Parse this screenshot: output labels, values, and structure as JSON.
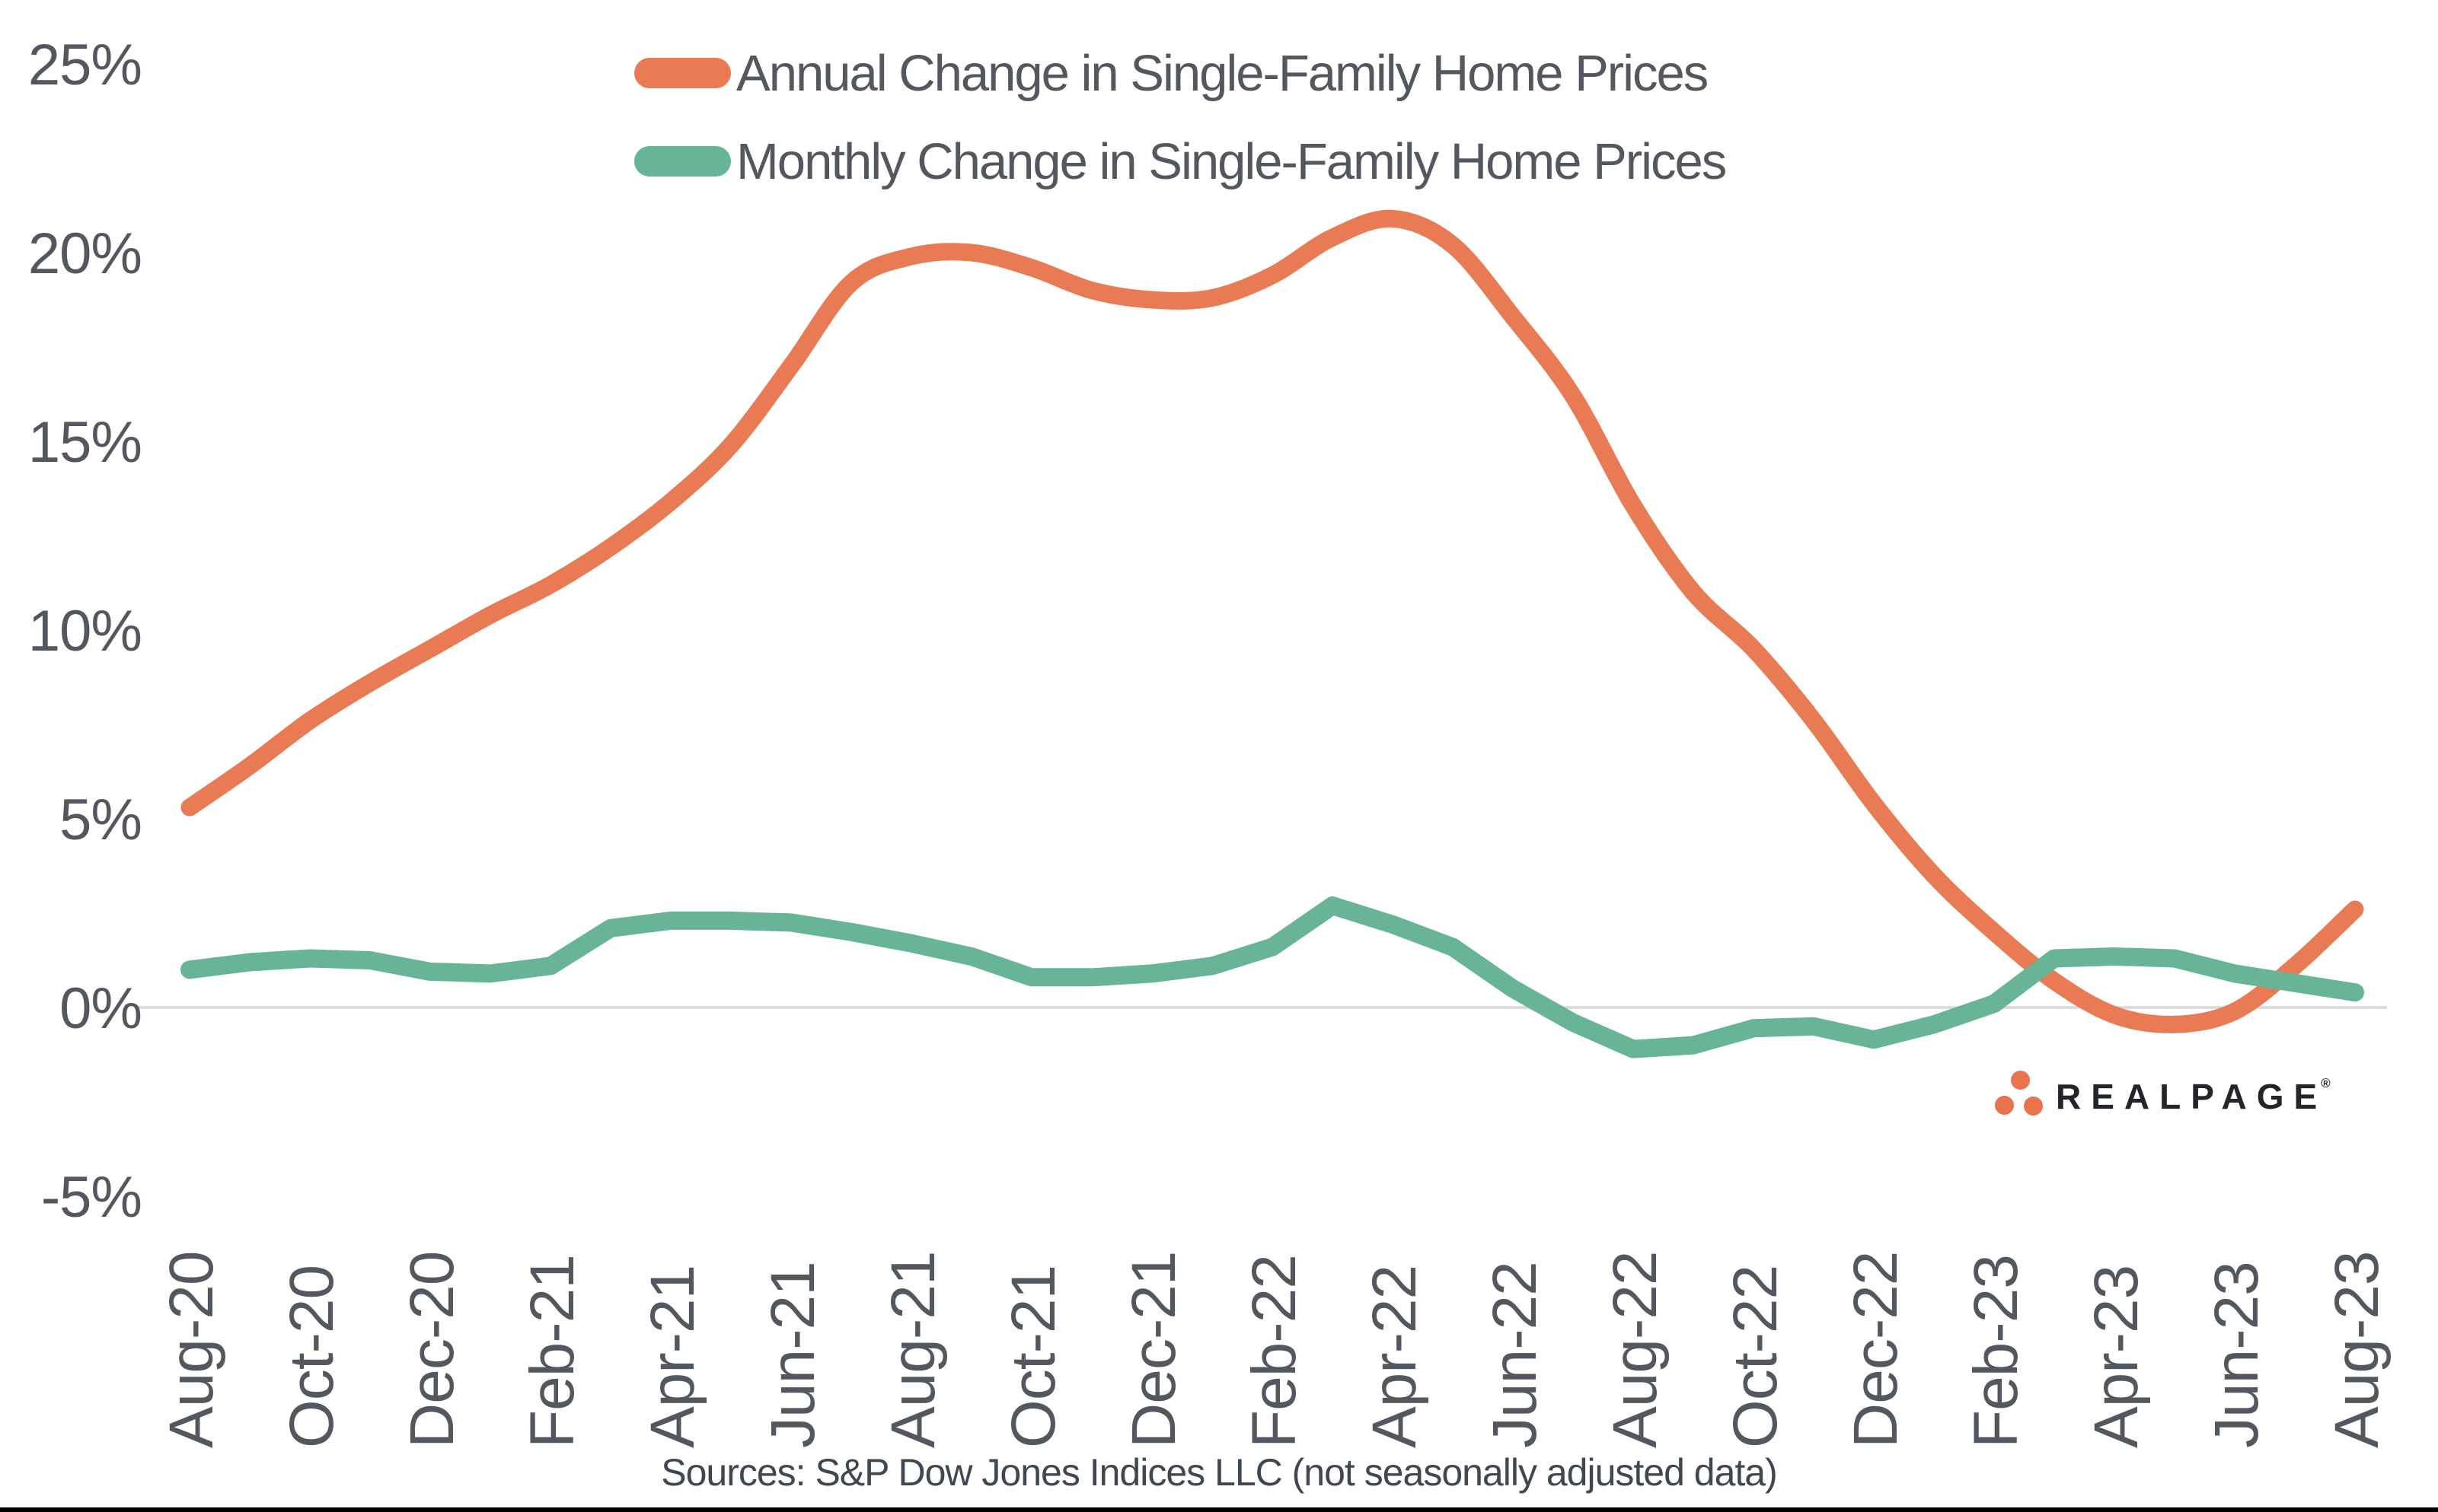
{
  "source": {
    "text": "Sources: S&P Dow Jones Indices LLC (not seasonally adjusted data)"
  },
  "logo": {
    "text": "REALPAGE",
    "registered_mark": "®",
    "dot_color": "#e8734c",
    "text_color": "#22262a"
  },
  "colors": {
    "annual_line": "#e87a54",
    "monthly_line": "#68b497",
    "axis_text": "#53585e",
    "zero_gridline": "#d9d9d9",
    "bottom_border": "#000000"
  },
  "chart_data": {
    "type": "line",
    "title": "",
    "xlabel": "",
    "ylabel": "",
    "legend_position": "top-center",
    "grid": "zero-line-only",
    "y_axis": {
      "min": -5,
      "max": 25,
      "tick_step": 5,
      "tick_labels": [
        "25%",
        "20%",
        "15%",
        "10%",
        "5%",
        "0%",
        "-5%"
      ],
      "tick_values": [
        25,
        20,
        15,
        10,
        5,
        0,
        -5
      ]
    },
    "x": [
      "Aug-20",
      "Sep-20",
      "Oct-20",
      "Nov-20",
      "Dec-20",
      "Jan-21",
      "Feb-21",
      "Mar-21",
      "Apr-21",
      "May-21",
      "Jun-21",
      "Jul-21",
      "Aug-21",
      "Sep-21",
      "Oct-21",
      "Nov-21",
      "Dec-21",
      "Jan-22",
      "Feb-22",
      "Mar-22",
      "Apr-22",
      "May-22",
      "Jun-22",
      "Jul-22",
      "Aug-22",
      "Sep-22",
      "Oct-22",
      "Nov-22",
      "Dec-22",
      "Jan-23",
      "Feb-23",
      "Mar-23",
      "Apr-23",
      "May-23",
      "Jun-23",
      "Jul-23",
      "Aug-23"
    ],
    "x_tick_labels_shown": [
      "Aug-20",
      "Oct-20",
      "Dec-20",
      "Feb-21",
      "Apr-21",
      "Jun-21",
      "Aug-21",
      "Oct-21",
      "Dec-21",
      "Feb-22",
      "Apr-22",
      "Jun-22",
      "Aug-22",
      "Oct-22",
      "Dec-22",
      "Feb-23",
      "Apr-23",
      "Jun-23",
      "Aug-23"
    ],
    "series": [
      {
        "name": "Annual Change in Single-Family Home Prices",
        "color": "#e87a54",
        "style": "smooth",
        "values": [
          5.3,
          6.4,
          7.6,
          8.6,
          9.5,
          10.4,
          11.2,
          12.2,
          13.4,
          14.9,
          17.0,
          19.2,
          19.9,
          20.0,
          19.6,
          19.0,
          18.75,
          18.8,
          19.4,
          20.4,
          20.9,
          20.2,
          18.3,
          16.2,
          13.3,
          11.0,
          9.5,
          7.6,
          5.4,
          3.5,
          2.0,
          0.7,
          -0.2,
          -0.45,
          -0.1,
          1.1,
          2.6
        ]
      },
      {
        "name": "Monthly Change in Single-Family Home Prices",
        "color": "#68b497",
        "style": "linear",
        "values": [
          1.0,
          1.2,
          1.3,
          1.25,
          0.95,
          0.9,
          1.1,
          2.1,
          2.3,
          2.3,
          2.25,
          2.0,
          1.7,
          1.35,
          0.8,
          0.8,
          0.9,
          1.1,
          1.6,
          2.7,
          2.2,
          1.6,
          0.5,
          -0.4,
          -1.1,
          -1.0,
          -0.55,
          -0.5,
          -0.85,
          -0.45,
          0.1,
          1.3,
          1.35,
          1.3,
          0.9,
          0.65,
          0.4
        ]
      }
    ]
  }
}
